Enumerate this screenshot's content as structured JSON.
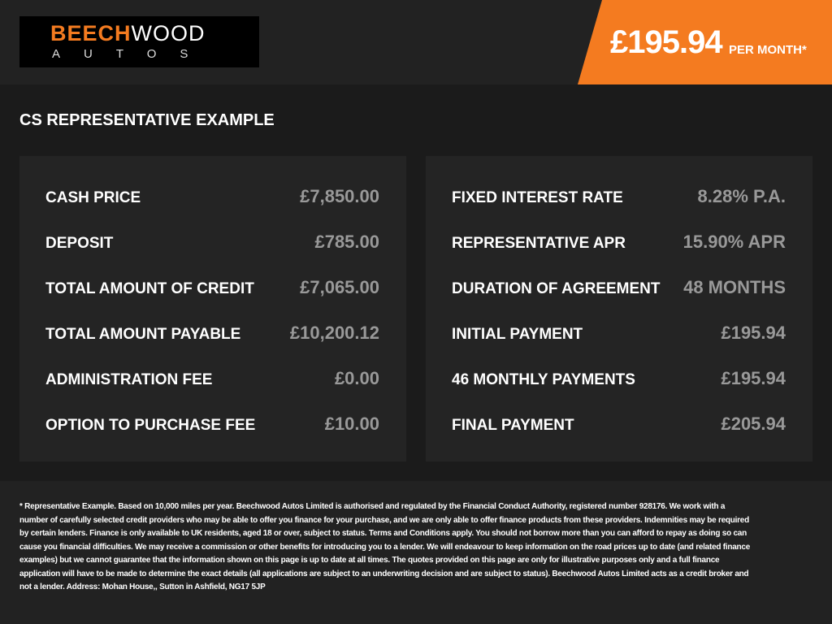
{
  "header": {
    "logo": {
      "part1": "BEECH",
      "part2": "WOOD",
      "subtitle": "AUTOS"
    },
    "price": "£195.94",
    "price_suffix": "PER MONTH*"
  },
  "section_title": "CS REPRESENTATIVE EXAMPLE",
  "panels": [
    {
      "rows": [
        {
          "label": "CASH PRICE",
          "value": "£7,850.00"
        },
        {
          "label": "DEPOSIT",
          "value": "£785.00"
        },
        {
          "label": "TOTAL AMOUNT OF CREDIT",
          "value": "£7,065.00"
        },
        {
          "label": "TOTAL AMOUNT PAYABLE",
          "value": "£10,200.12"
        },
        {
          "label": "ADMINISTRATION FEE",
          "value": "£0.00"
        },
        {
          "label": "OPTION TO PURCHASE FEE",
          "value": "£10.00"
        }
      ]
    },
    {
      "rows": [
        {
          "label": "FIXED INTEREST RATE",
          "value": "8.28% P.A."
        },
        {
          "label": "REPRESENTATIVE APR",
          "value": "15.90% APR"
        },
        {
          "label": "DURATION OF AGREEMENT",
          "value": "48 MONTHS"
        },
        {
          "label": "INITIAL PAYMENT",
          "value": "£195.94"
        },
        {
          "label": "46 MONTHLY PAYMENTS",
          "value": "£195.94"
        },
        {
          "label": "FINAL PAYMENT",
          "value": "£205.94"
        }
      ]
    }
  ],
  "disclaimer": "* Representative Example. Based on 10,000 miles per year. Beechwood Autos Limited is authorised and regulated by the Financial Conduct Authority, registered number 928176. We work with a number of carefully selected credit providers who may be able to offer you finance for your purchase, and we are only able to offer finance products from these providers. Indemnities may be required by certain lenders. Finance is only available to UK residents, aged 18 or over, subject to status. Terms and Conditions apply. You should not borrow more than you can afford to repay as doing so can cause you financial difficulties. We may receive a commission or other benefits for introducing you to a lender. We will endeavour to keep information on the road prices up to date (and related finance examples) but we cannot guarantee that the information shown on this page is up to date at all times. The quotes provided on this page are only for illustrative purposes only and a full finance application will have to be made to determine the exact details (all applications are subject to an underwriting decision and are subject to status). Beechwood Autos Limited acts as a credit broker and not a lender. Address: Mohan House,, Sutton in Ashfield, NG17 5JP"
}
